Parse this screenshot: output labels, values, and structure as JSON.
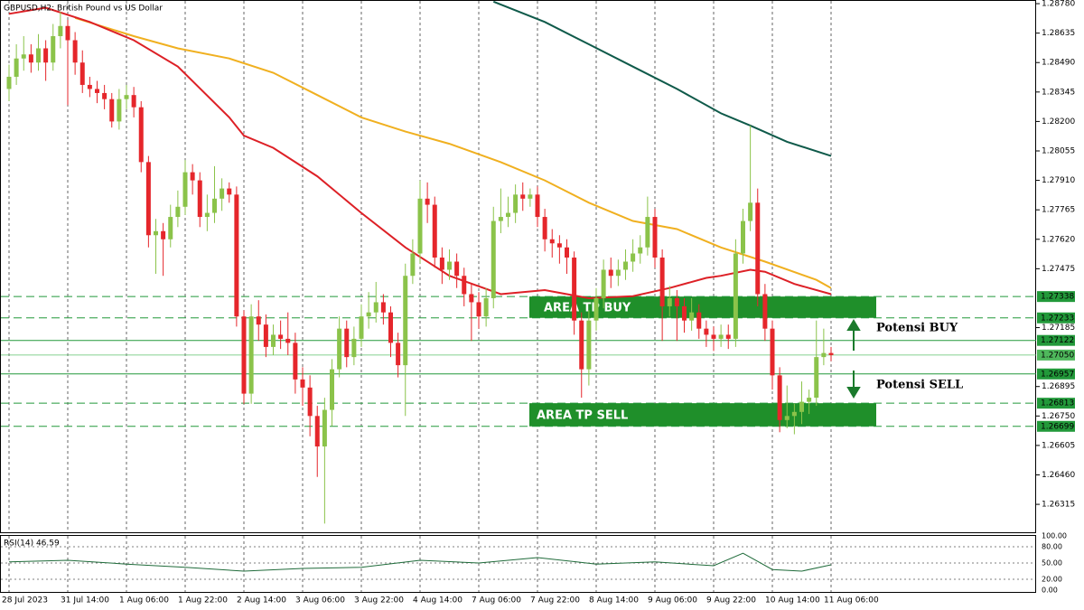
{
  "chart_data": [
    {
      "type": "candlestick",
      "title": "GBPUSD,H2: British Pound vs US Dollar",
      "up_color": "#8bc34a",
      "down_color": "#e5262b",
      "categories": [
        "28 Jul 2023",
        null,
        null,
        null,
        null,
        null,
        null,
        null,
        "31 Jul 14:00",
        null,
        null,
        null,
        null,
        null,
        null,
        null,
        "1 Aug 06:00",
        null,
        null,
        null,
        null,
        null,
        null,
        null,
        "1 Aug 22:00",
        null,
        null,
        null,
        null,
        null,
        null,
        null,
        "2 Aug 14:00",
        null,
        null,
        null,
        null,
        null,
        null,
        null,
        "3 Aug 06:00",
        null,
        null,
        null,
        null,
        null,
        null,
        null,
        "3 Aug 22:00",
        null,
        null,
        null,
        null,
        null,
        null,
        null,
        "4 Aug 14:00",
        null,
        null,
        null,
        null,
        null,
        null,
        null,
        "7 Aug 06:00",
        null,
        null,
        null,
        null,
        null,
        null,
        null,
        "7 Aug 22:00",
        null,
        null,
        null,
        null,
        null,
        null,
        null,
        "8 Aug 14:00",
        null,
        null,
        null,
        null,
        null,
        null,
        null,
        "9 Aug 06:00",
        null,
        null,
        null,
        null,
        null,
        null,
        null,
        "9 Aug 22:00",
        null,
        null,
        null,
        null,
        null,
        null,
        null,
        "10 Aug 14:00",
        null,
        null,
        null,
        null,
        null,
        null,
        null,
        "11 Aug 06:00"
      ],
      "open": [
        1.2836,
        1.2842,
        1.2851,
        1.2853,
        1.2849,
        1.2856,
        1.2849,
        1.2862,
        1.2867,
        1.286,
        1.2849,
        1.2838,
        1.2836,
        1.2834,
        1.2831,
        1.282,
        1.2831,
        1.2833,
        1.2827,
        1.28,
        1.2764,
        1.2766,
        1.2762,
        1.2773,
        1.2778,
        1.2795,
        1.2791,
        1.2773,
        1.2775,
        1.2782,
        1.2787,
        1.2784,
        1.2724,
        1.2686,
        1.2724,
        1.272,
        1.2709,
        1.2715,
        1.2713,
        1.2711,
        1.2693,
        1.2689,
        1.2675,
        1.266,
        1.2678,
        1.2698,
        1.2718,
        1.2704,
        1.2713,
        1.2724,
        1.2726,
        1.2731,
        1.2726,
        1.2711,
        1.27,
        1.2744,
        1.2755,
        1.2782,
        1.2779,
        1.2753,
        1.2747,
        1.2751,
        1.2744,
        1.2735,
        1.2731,
        1.2724,
        1.2733,
        1.2771,
        1.2773,
        1.2775,
        1.2784,
        1.2782,
        1.2784,
        1.2773,
        1.2762,
        1.276,
        1.2758,
        1.2753,
        1.2722,
        1.2698,
        1.2722,
        1.2733,
        1.2747,
        1.2744,
        1.2747,
        1.2751,
        1.2755,
        1.2758,
        1.2773,
        1.2753,
        1.2729,
        1.2733,
        1.2729,
        1.2722,
        1.2726,
        1.2718,
        1.2715,
        1.2713,
        1.2715,
        1.2713,
        1.2755,
        1.2771,
        1.278,
        1.2735,
        1.2718,
        1.2695,
        1.2673,
        1.2675,
        1.2677,
        1.2682,
        1.2684,
        1.2704,
        1.2706
      ],
      "high": [
        1.2848,
        1.2858,
        1.2862,
        1.2858,
        1.2863,
        1.286,
        1.2868,
        1.2874,
        1.287,
        1.2864,
        1.2855,
        1.2842,
        1.284,
        1.2838,
        1.2834,
        1.2836,
        1.2838,
        1.2837,
        1.283,
        1.2803,
        1.2772,
        1.277,
        1.2779,
        1.2786,
        1.2801,
        1.2799,
        1.2795,
        1.2784,
        1.2798,
        1.2792,
        1.279,
        1.2788,
        1.2727,
        1.273,
        1.2732,
        1.2725,
        1.272,
        1.2722,
        1.2726,
        1.2716,
        1.2699,
        1.2695,
        1.268,
        1.2684,
        1.2703,
        1.2724,
        1.2722,
        1.2719,
        1.273,
        1.2736,
        1.2741,
        1.2735,
        1.2729,
        1.2716,
        1.275,
        1.2762,
        1.2791,
        1.279,
        1.2783,
        1.2758,
        1.2757,
        1.2755,
        1.2748,
        1.274,
        1.2736,
        1.2738,
        1.2778,
        1.2787,
        1.2783,
        1.2789,
        1.279,
        1.2787,
        1.2788,
        1.2777,
        1.2767,
        1.2764,
        1.2762,
        1.2756,
        1.2726,
        1.2727,
        1.2738,
        1.2752,
        1.2753,
        1.2752,
        1.2757,
        1.2762,
        1.2764,
        1.2783,
        1.2777,
        1.2757,
        1.2739,
        1.2737,
        1.2733,
        1.2733,
        1.273,
        1.2722,
        1.2719,
        1.272,
        1.272,
        1.2762,
        1.2777,
        1.2818,
        1.2787,
        1.274,
        1.2722,
        1.2699,
        1.269,
        1.2681,
        1.2692,
        1.2688,
        1.2722,
        1.2718,
        1.2709
      ],
      "low": [
        1.283,
        1.2838,
        1.2845,
        1.2844,
        1.2845,
        1.284,
        1.2845,
        1.2856,
        1.2828,
        1.2843,
        1.2834,
        1.2832,
        1.2829,
        1.2826,
        1.2817,
        1.2816,
        1.2826,
        1.2822,
        1.2795,
        1.2758,
        1.2745,
        1.2744,
        1.2758,
        1.2768,
        1.2774,
        1.2784,
        1.2768,
        1.2766,
        1.277,
        1.2776,
        1.278,
        1.2719,
        1.2681,
        1.2681,
        1.2712,
        1.2704,
        1.2705,
        1.2708,
        1.2705,
        1.2686,
        1.268,
        1.2665,
        1.2645,
        1.2622,
        1.267,
        1.2694,
        1.2699,
        1.27,
        1.2709,
        1.2718,
        1.2721,
        1.272,
        1.2704,
        1.2694,
        1.2675,
        1.274,
        1.275,
        1.277,
        1.2748,
        1.274,
        1.2742,
        1.2738,
        1.2729,
        1.2712,
        1.2718,
        1.2719,
        1.2728,
        1.2765,
        1.2768,
        1.277,
        1.2776,
        1.2778,
        1.2768,
        1.2756,
        1.2753,
        1.275,
        1.2745,
        1.2715,
        1.2684,
        1.269,
        1.2717,
        1.2728,
        1.2738,
        1.2739,
        1.2742,
        1.2746,
        1.275,
        1.2754,
        1.2748,
        1.2712,
        1.2724,
        1.2712,
        1.2716,
        1.2717,
        1.2713,
        1.2709,
        1.2707,
        1.2709,
        1.2708,
        1.2709,
        1.275,
        1.2766,
        1.2729,
        1.2712,
        1.2688,
        1.2667,
        1.2669,
        1.2666,
        1.2671,
        1.2676,
        1.268,
        1.27,
        1.2702
      ],
      "close": [
        1.2842,
        1.2851,
        1.2853,
        1.2849,
        1.2856,
        1.2849,
        1.2862,
        1.2867,
        1.286,
        1.2849,
        1.2838,
        1.2836,
        1.2834,
        1.2831,
        1.282,
        1.2831,
        1.2833,
        1.2827,
        1.28,
        1.2764,
        1.2766,
        1.2762,
        1.2773,
        1.2778,
        1.2795,
        1.2791,
        1.2773,
        1.2775,
        1.2782,
        1.2787,
        1.2784,
        1.2724,
        1.2686,
        1.2724,
        1.272,
        1.2709,
        1.2715,
        1.2713,
        1.2711,
        1.2693,
        1.2689,
        1.2675,
        1.266,
        1.2678,
        1.2698,
        1.2718,
        1.2704,
        1.2713,
        1.2724,
        1.2726,
        1.2731,
        1.2726,
        1.2711,
        1.27,
        1.2744,
        1.2755,
        1.2782,
        1.2779,
        1.2753,
        1.2747,
        1.2751,
        1.2744,
        1.2735,
        1.2731,
        1.2724,
        1.2733,
        1.2771,
        1.2773,
        1.2775,
        1.2784,
        1.2782,
        1.2784,
        1.2773,
        1.2762,
        1.276,
        1.2758,
        1.2753,
        1.2722,
        1.2698,
        1.2722,
        1.2733,
        1.2747,
        1.2744,
        1.2747,
        1.2751,
        1.2755,
        1.2758,
        1.2773,
        1.2753,
        1.2729,
        1.2733,
        1.2729,
        1.2722,
        1.2726,
        1.2718,
        1.2715,
        1.2713,
        1.2715,
        1.2713,
        1.2755,
        1.2771,
        1.278,
        1.2735,
        1.2718,
        1.2695,
        1.2673,
        1.2675,
        1.2677,
        1.2682,
        1.2684,
        1.2704,
        1.2706,
        1.2705
      ],
      "overlays": [
        {
          "color": "#0f5a4a",
          "x": [
            66,
            73,
            79,
            85,
            91,
            97,
            101,
            106,
            112
          ],
          "values": [
            1.2879,
            1.2869,
            1.2858,
            1.2847,
            1.2836,
            1.2824,
            1.2818,
            1.281,
            1.2803
          ]
        },
        {
          "color": "#f0b020",
          "x": [
            9,
            17,
            23,
            30,
            36,
            42,
            48,
            54,
            60,
            67,
            73,
            79,
            85,
            91,
            97,
            103,
            110,
            112
          ],
          "values": [
            1.2871,
            1.2862,
            1.2856,
            1.2851,
            1.2844,
            1.2833,
            1.2822,
            1.2815,
            1.2809,
            1.28,
            1.2791,
            1.278,
            1.2771,
            1.2767,
            1.2758,
            1.2751,
            1.2742,
            1.2738
          ]
        },
        {
          "color": "#dd2026",
          "x": [
            0,
            5,
            11,
            17,
            23,
            30,
            32,
            36,
            42,
            48,
            54,
            60,
            67,
            73,
            79,
            85,
            90,
            95,
            97,
            101,
            103,
            107,
            112
          ],
          "values": [
            1.2873,
            1.2876,
            1.2869,
            1.286,
            1.2847,
            1.2822,
            1.2813,
            1.2807,
            1.2793,
            1.2775,
            1.2758,
            1.2744,
            1.2735,
            1.2737,
            1.2733,
            1.2734,
            1.2738,
            1.2743,
            1.2744,
            1.2747,
            1.2746,
            1.274,
            1.2735
          ]
        }
      ],
      "levels": [
        {
          "value": 1.27338,
          "style": "dashed"
        },
        {
          "value": 1.27233,
          "style": "dashed"
        },
        {
          "value": 1.27122,
          "style": "solid"
        },
        {
          "value": 1.2705,
          "label": "1.27050",
          "style": "current"
        },
        {
          "value": 1.26957,
          "style": "solid"
        },
        {
          "value": 1.26813,
          "style": "dashed"
        },
        {
          "value": 1.26699,
          "style": "dashed"
        }
      ],
      "level_color": "#22993a",
      "zones": [
        {
          "label": "AREA TP BUY",
          "top": 1.27338,
          "bottom": 1.27233
        },
        {
          "label": "AREA TP SELL",
          "top": 1.26813,
          "bottom": 1.26699
        }
      ],
      "zone_color": "#1f8f2a",
      "signals": [
        "Potensi BUY",
        "Potensi SELL"
      ],
      "signal_color": "#1b7a2c",
      "ylim": [
        1.26173,
        1.28798
      ],
      "yticks": [
        {
          "value": 1.2878,
          "label": "1.28780"
        },
        1.28635,
        {
          "value": 1.2849,
          "label": "1.28490"
        },
        1.28345,
        {
          "value": 1.282,
          "label": "1.28200"
        },
        1.28055,
        {
          "value": 1.2791,
          "label": "1.27910"
        },
        1.27765,
        {
          "value": 1.2762,
          "label": "1.27620"
        },
        1.27475,
        1.27185,
        1.26895,
        {
          "value": 1.2675,
          "label": "1.26750"
        },
        1.26605,
        {
          "value": 1.2646,
          "label": "1.26460"
        },
        1.26315
      ]
    },
    {
      "type": "line",
      "title": "RSI(14) 46.59",
      "series": [
        {
          "color": "#1f6b3a",
          "x": [
            0,
            8,
            16,
            24,
            32,
            40,
            48,
            56,
            64,
            72,
            80,
            88,
            96,
            100,
            104,
            108,
            112
          ],
          "values": [
            52,
            55,
            48,
            42,
            35,
            40,
            42,
            55,
            50,
            60,
            48,
            52,
            45,
            68,
            38,
            35,
            46.59
          ]
        }
      ],
      "ylim": [
        0,
        100
      ],
      "yticks": [
        {
          "value": 100,
          "label": "100.00"
        },
        {
          "value": 80,
          "label": "80.00"
        },
        {
          "value": 50,
          "label": "50.00"
        },
        {
          "value": 20,
          "label": "20.00"
        },
        {
          "value": 0,
          "label": "0.00"
        }
      ]
    }
  ]
}
